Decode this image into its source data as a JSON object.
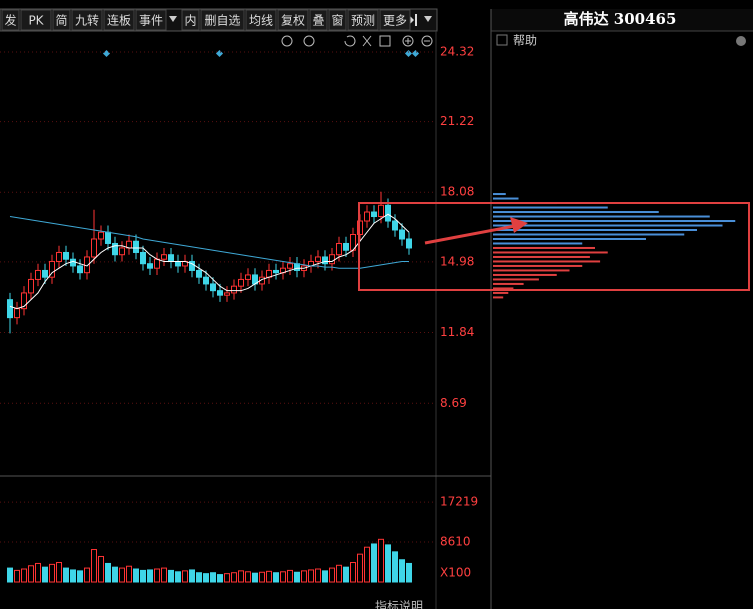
{
  "toolbar": [
    "发",
    "PK",
    "简",
    "九转",
    "连板",
    "事件",
    "内",
    "删自选",
    "均线",
    "复权",
    "叠",
    "窗",
    "预测",
    "更多"
  ],
  "side_title": "高伟达 300465",
  "help": "帮助",
  "indicator_note": "指标说明",
  "chart_data": {
    "type": "candlestick",
    "ylim": [
      5.72,
      25.3
    ],
    "yticks": [
      24.32,
      21.22,
      18.08,
      14.98,
      11.84,
      8.69
    ],
    "grid": true,
    "up_color": "#ff3333",
    "down_color": "#3fd6e8",
    "open": [
      13.3,
      12.5,
      12.9,
      13.6,
      14.2,
      14.6,
      14.3,
      15.0,
      15.4,
      15.1,
      14.8,
      14.5,
      15.2,
      16.0,
      16.3,
      15.8,
      15.3,
      15.6,
      15.9,
      15.4,
      14.9,
      14.7,
      15.1,
      15.3,
      15.0,
      14.8,
      15.0,
      14.6,
      14.3,
      14.0,
      13.7,
      13.5,
      13.6,
      13.9,
      14.2,
      14.4,
      14.0,
      14.3,
      14.6,
      14.5,
      14.7,
      14.9,
      14.6,
      14.8,
      15.0,
      15.2,
      14.9,
      15.3,
      15.8,
      15.5,
      16.2,
      16.8,
      17.2,
      17.0,
      17.5,
      16.8,
      16.4,
      16.0
    ],
    "high": [
      13.6,
      13.2,
      13.9,
      14.5,
      14.9,
      14.9,
      15.3,
      15.7,
      15.7,
      15.4,
      15.1,
      15.5,
      17.3,
      16.6,
      16.6,
      16.1,
      15.9,
      16.2,
      16.2,
      15.7,
      15.2,
      15.4,
      15.6,
      15.6,
      15.3,
      15.3,
      15.3,
      14.9,
      14.6,
      14.3,
      14.0,
      13.9,
      14.2,
      14.5,
      14.7,
      14.7,
      14.6,
      14.9,
      14.9,
      15.0,
      15.2,
      15.2,
      15.1,
      15.3,
      15.5,
      15.5,
      15.6,
      16.1,
      16.1,
      16.5,
      17.1,
      17.5,
      17.5,
      18.1,
      17.8,
      17.1,
      16.7,
      16.3
    ],
    "low": [
      11.8,
      12.2,
      12.6,
      13.3,
      13.9,
      14.0,
      14.0,
      14.7,
      14.8,
      14.5,
      14.2,
      14.2,
      14.9,
      15.7,
      15.5,
      15.0,
      15.0,
      15.3,
      15.1,
      14.6,
      14.4,
      14.4,
      14.8,
      14.7,
      14.5,
      14.5,
      14.3,
      14.0,
      13.7,
      13.4,
      13.2,
      13.2,
      13.3,
      13.6,
      13.9,
      13.7,
      13.7,
      14.0,
      14.2,
      14.2,
      14.4,
      14.3,
      14.3,
      14.5,
      14.7,
      14.6,
      14.6,
      15.0,
      15.2,
      15.2,
      15.9,
      16.5,
      16.7,
      16.7,
      16.5,
      16.1,
      15.7,
      15.3
    ],
    "close": [
      12.5,
      12.9,
      13.6,
      14.2,
      14.6,
      14.3,
      15.0,
      15.4,
      15.1,
      14.8,
      14.5,
      15.2,
      16.0,
      16.3,
      15.8,
      15.3,
      15.6,
      15.9,
      15.4,
      14.9,
      14.7,
      15.1,
      15.3,
      15.0,
      14.8,
      15.0,
      14.6,
      14.3,
      14.0,
      13.7,
      13.5,
      13.6,
      13.9,
      14.2,
      14.4,
      14.0,
      14.3,
      14.6,
      14.5,
      14.7,
      14.9,
      14.6,
      14.8,
      15.0,
      15.2,
      14.9,
      15.3,
      15.8,
      15.5,
      16.2,
      16.8,
      17.2,
      17.0,
      17.5,
      16.8,
      16.4,
      16.0,
      15.6
    ],
    "ma_lines": [
      {
        "color": "#ffffff",
        "values": [
          13.0,
          12.9,
          13.0,
          13.3,
          13.6,
          14.1,
          14.5,
          14.7,
          14.9,
          15.0,
          14.9,
          14.8,
          15.1,
          15.4,
          15.6,
          15.7,
          15.7,
          15.6,
          15.6,
          15.6,
          15.3,
          15.1,
          15.0,
          15.0,
          15.0,
          15.0,
          14.9,
          14.7,
          14.5,
          14.2,
          13.9,
          13.7,
          13.7,
          13.7,
          13.8,
          14.0,
          14.2,
          14.3,
          14.4,
          14.5,
          14.6,
          14.7,
          14.7,
          14.8,
          14.9,
          15.0,
          15.0,
          15.2,
          15.3,
          15.5,
          15.9,
          16.3,
          16.7,
          16.9,
          17.1,
          16.9,
          16.6,
          16.3
        ]
      },
      {
        "color": "#3fa9d6",
        "values": [
          17.0,
          16.95,
          16.9,
          16.85,
          16.8,
          16.75,
          16.7,
          16.65,
          16.6,
          16.55,
          16.5,
          16.45,
          16.4,
          16.35,
          16.3,
          16.25,
          16.2,
          16.15,
          16.1,
          16.0,
          15.95,
          15.9,
          15.85,
          15.8,
          15.75,
          15.7,
          15.65,
          15.6,
          15.55,
          15.5,
          15.45,
          15.4,
          15.35,
          15.3,
          15.25,
          15.2,
          15.15,
          15.1,
          15.05,
          15.0,
          14.95,
          14.9,
          14.85,
          14.8,
          14.8,
          14.75,
          14.75,
          14.7,
          14.7,
          14.7,
          14.7,
          14.75,
          14.8,
          14.85,
          14.9,
          14.95,
          15.0,
          15.0
        ]
      }
    ],
    "volume": [
      3000,
      2500,
      2800,
      3500,
      4000,
      3200,
      3800,
      4200,
      3000,
      2600,
      2400,
      3000,
      7000,
      5500,
      4000,
      3200,
      3000,
      3400,
      2800,
      2500,
      2600,
      2800,
      3000,
      2500,
      2200,
      2400,
      2600,
      2000,
      1800,
      2000,
      1600,
      1800,
      2000,
      2400,
      2200,
      1900,
      2100,
      2300,
      2000,
      2200,
      2500,
      2100,
      2400,
      2600,
      2800,
      2400,
      3000,
      3600,
      3200,
      4200,
      6000,
      7500,
      8200,
      9200,
      8000,
      6500,
      4800,
      4000
    ],
    "volume_ylim": [
      0,
      22420
    ],
    "volume_yticks": [
      17219,
      8610
    ],
    "volume_unit": "X100",
    "chips": {
      "xlim": [
        0,
        100
      ],
      "series": [
        {
          "color": "#4a8fd8",
          "prices": [
            18.0,
            17.8,
            17.6,
            17.4,
            17.2,
            17.0,
            16.8,
            16.6,
            16.4,
            16.2,
            16.0,
            15.8
          ],
          "values": [
            5,
            10,
            25,
            45,
            65,
            85,
            95,
            90,
            80,
            75,
            60,
            35
          ]
        },
        {
          "color": "#e04040",
          "prices": [
            15.6,
            15.4,
            15.2,
            15.0,
            14.8,
            14.6,
            14.4,
            14.2,
            14.0,
            13.8,
            13.6,
            13.4
          ],
          "values": [
            40,
            45,
            38,
            42,
            35,
            30,
            25,
            18,
            12,
            8,
            6,
            4
          ]
        }
      ]
    }
  }
}
